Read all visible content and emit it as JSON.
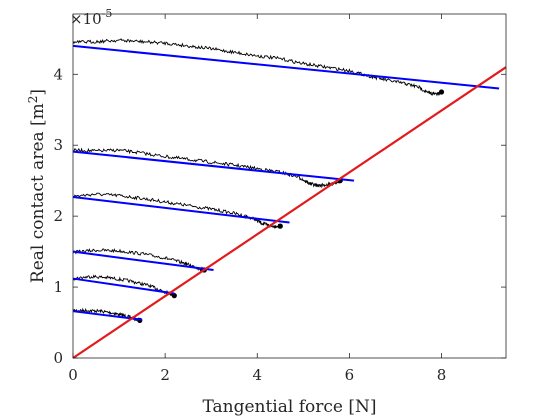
{
  "chart_data": {
    "type": "line",
    "title": "",
    "xlabel": "Tangential force [N]",
    "ylabel": "Real contact area [m^2]",
    "ylabel_base": "Real contact area [m",
    "ylabel_sup": "2",
    "ylabel_tail": "]",
    "y_multiplier_base": "×10",
    "y_multiplier_exp": "-5",
    "xlim": [
      0,
      9.4
    ],
    "ylim": [
      0,
      4.85
    ],
    "x_ticks": [
      0,
      2,
      4,
      6,
      8
    ],
    "x_tick_labels": [
      "0",
      "2",
      "4",
      "6",
      "8"
    ],
    "y_ticks": [
      0,
      1,
      2,
      3,
      4
    ],
    "y_tick_labels": [
      "0",
      "1",
      "2",
      "3",
      "4"
    ],
    "grid": false,
    "legend": "none",
    "colors": {
      "measured": "#000000",
      "fit": "#0000ff",
      "boundary": "#e31a1c",
      "axes": "#262626"
    },
    "measured_series": [
      {
        "points": [
          [
            0.0,
            0.67
          ],
          [
            0.3,
            0.67
          ],
          [
            0.6,
            0.66
          ],
          [
            0.9,
            0.63
          ],
          [
            1.15,
            0.59
          ],
          [
            1.35,
            0.55
          ],
          [
            1.45,
            0.53
          ]
        ]
      },
      {
        "points": [
          [
            0.0,
            1.12
          ],
          [
            0.4,
            1.15
          ],
          [
            0.8,
            1.13
          ],
          [
            1.2,
            1.09
          ],
          [
            1.6,
            1.03
          ],
          [
            1.9,
            0.96
          ],
          [
            2.1,
            0.91
          ],
          [
            2.2,
            0.88
          ]
        ]
      },
      {
        "points": [
          [
            0.0,
            1.49
          ],
          [
            0.5,
            1.52
          ],
          [
            1.0,
            1.51
          ],
          [
            1.5,
            1.47
          ],
          [
            2.0,
            1.41
          ],
          [
            2.4,
            1.34
          ],
          [
            2.7,
            1.27
          ],
          [
            2.85,
            1.24
          ]
        ]
      },
      {
        "points": [
          [
            0.0,
            2.28
          ],
          [
            0.5,
            2.31
          ],
          [
            1.0,
            2.29
          ],
          [
            1.5,
            2.25
          ],
          [
            2.0,
            2.2
          ],
          [
            2.5,
            2.15
          ],
          [
            3.0,
            2.1
          ],
          [
            3.5,
            2.04
          ],
          [
            3.9,
            1.97
          ],
          [
            4.1,
            1.9
          ],
          [
            4.3,
            1.86
          ],
          [
            4.5,
            1.86
          ]
        ]
      },
      {
        "points": [
          [
            0.0,
            2.93
          ],
          [
            0.5,
            2.92
          ],
          [
            1.0,
            2.93
          ],
          [
            1.5,
            2.89
          ],
          [
            2.0,
            2.84
          ],
          [
            2.5,
            2.8
          ],
          [
            3.0,
            2.76
          ],
          [
            3.5,
            2.72
          ],
          [
            4.0,
            2.67
          ],
          [
            4.5,
            2.62
          ],
          [
            4.9,
            2.55
          ],
          [
            5.1,
            2.47
          ],
          [
            5.3,
            2.43
          ],
          [
            5.6,
            2.45
          ],
          [
            5.8,
            2.5
          ]
        ]
      },
      {
        "points": [
          [
            0.0,
            4.45
          ],
          [
            0.5,
            4.46
          ],
          [
            1.0,
            4.48
          ],
          [
            1.5,
            4.46
          ],
          [
            2.0,
            4.44
          ],
          [
            2.5,
            4.4
          ],
          [
            3.0,
            4.36
          ],
          [
            3.5,
            4.31
          ],
          [
            4.0,
            4.26
          ],
          [
            4.5,
            4.22
          ],
          [
            5.0,
            4.15
          ],
          [
            5.5,
            4.1
          ],
          [
            6.0,
            4.05
          ],
          [
            6.4,
            3.98
          ],
          [
            6.8,
            3.92
          ],
          [
            7.2,
            3.87
          ],
          [
            7.5,
            3.82
          ],
          [
            7.7,
            3.74
          ],
          [
            7.9,
            3.72
          ],
          [
            8.0,
            3.75
          ]
        ]
      }
    ],
    "fit_lines": [
      {
        "x": [
          0.0,
          1.5
        ],
        "y": [
          0.66,
          0.54
        ]
      },
      {
        "x": [
          0.0,
          2.2
        ],
        "y": [
          1.12,
          0.91
        ]
      },
      {
        "x": [
          0.0,
          3.05
        ],
        "y": [
          1.5,
          1.24
        ]
      },
      {
        "x": [
          0.0,
          4.7
        ],
        "y": [
          2.27,
          1.91
        ]
      },
      {
        "x": [
          0.0,
          6.1
        ],
        "y": [
          2.91,
          2.5
        ]
      },
      {
        "x": [
          0.0,
          9.25
        ],
        "y": [
          4.4,
          3.8
        ]
      }
    ],
    "boundary_line": {
      "x": [
        0.0,
        9.4
      ],
      "y": [
        0.0,
        4.1
      ]
    }
  }
}
